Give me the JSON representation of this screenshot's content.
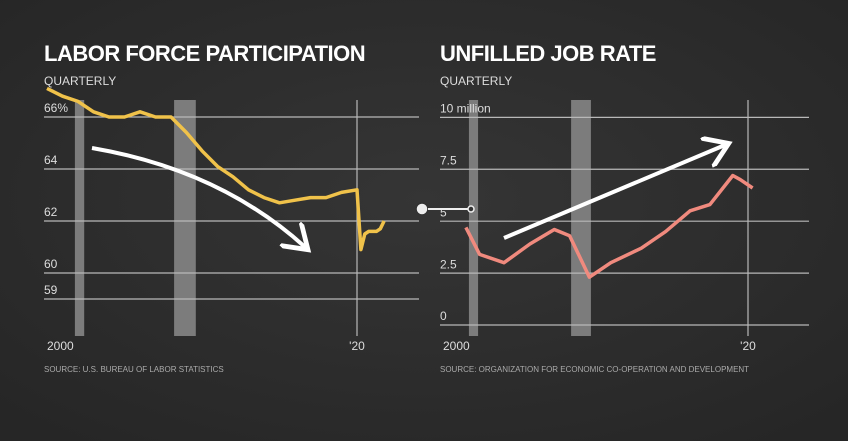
{
  "chart_data": [
    {
      "type": "line",
      "title": "LABOR FORCE PARTICIPATION",
      "subtitle": "QUARTERLY",
      "source": "SOURCE: U.S. BUREAU OF LABOR STATISTICS",
      "x": [
        2000,
        2001,
        2002,
        2003,
        2004,
        2005,
        2006,
        2007,
        2008,
        2009,
        2010,
        2011,
        2012,
        2013,
        2014,
        2015,
        2016,
        2017,
        2018,
        2019,
        2020,
        2020.25,
        2020.5,
        2020.75,
        2021,
        2021.25,
        2021.5,
        2021.75
      ],
      "values": [
        67.1,
        66.8,
        66.6,
        66.2,
        66.0,
        66.0,
        66.2,
        66.0,
        66.0,
        65.4,
        64.7,
        64.1,
        63.7,
        63.2,
        62.9,
        62.7,
        62.8,
        62.9,
        62.9,
        63.1,
        63.2,
        60.9,
        61.5,
        61.6,
        61.6,
        61.6,
        61.7,
        62.0
      ],
      "color": "#f0c24a",
      "shaded_periods": [
        [
          2001.8,
          2002.4
        ],
        [
          2008.2,
          2009.6
        ]
      ],
      "xlim": [
        2000,
        2024
      ],
      "xticks": [
        2000,
        {
          "value": 2020,
          "label": "'20"
        }
      ],
      "ylim": [
        58,
        67
      ],
      "yticks": [
        {
          "value": 66,
          "label": "66%"
        },
        64,
        62,
        60,
        59
      ],
      "grid": true
    },
    {
      "type": "line",
      "title": "UNFILLED JOB RATE",
      "subtitle": "QUARTERLY",
      "source": "SOURCE: ORGANIZATION FOR ECONOMIC CO-OPERATION AND DEVELOPMENT",
      "x": [
        2001.5,
        2002.4,
        2004,
        2005.7,
        2007.3,
        2008.3,
        2009.6,
        2011,
        2013,
        2014.6,
        2016.2,
        2017.5,
        2019,
        2019.5,
        2020.3
      ],
      "values": [
        4.7,
        3.4,
        3.0,
        3.9,
        4.6,
        4.3,
        2.3,
        3.0,
        3.7,
        4.5,
        5.5,
        5.8,
        7.2,
        7.0,
        6.6
      ],
      "color": "#f08a7e",
      "shaded_periods": [
        [
          2001.7,
          2002.3
        ],
        [
          2008.4,
          2009.7
        ]
      ],
      "xlim": [
        2000,
        2024
      ],
      "xticks": [
        2000,
        {
          "value": 2020,
          "label": "'20"
        }
      ],
      "ylim": [
        0,
        10.5
      ],
      "yticks": [
        {
          "value": 10,
          "label": "10 million"
        },
        7.5,
        5,
        2.5,
        0
      ],
      "grid": true
    }
  ]
}
